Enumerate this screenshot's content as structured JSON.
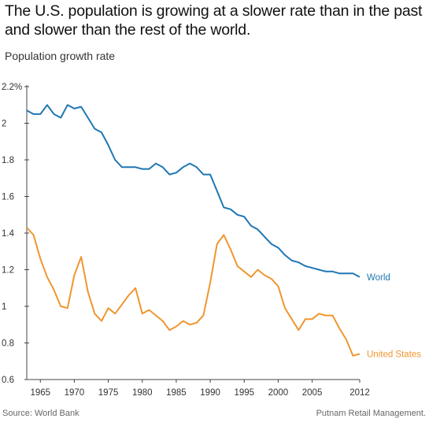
{
  "header": {
    "title": "The U.S. population is growing at a slower rate than in the past and slower than the rest of the world.",
    "subtitle": "Population growth rate"
  },
  "footer": {
    "source": "Source: World Bank",
    "credit": "Putnam Retail Management."
  },
  "chart_data": {
    "type": "line",
    "title": "",
    "xlabel": "",
    "ylabel": "",
    "xlim": [
      1963,
      2012
    ],
    "ylim": [
      0.6,
      2.2
    ],
    "grid": false,
    "x_ticks": [
      1965,
      1970,
      1975,
      1980,
      1985,
      1990,
      1995,
      2000,
      2005,
      2012
    ],
    "x_tick_labels": [
      "1965",
      "1970",
      "1975",
      "1980",
      "1985",
      "1990",
      "1995",
      "2000",
      "2005",
      "2012"
    ],
    "y_ticks": [
      0.6,
      0.8,
      1.0,
      1.2,
      1.4,
      1.6,
      1.8,
      2.0,
      2.2
    ],
    "y_tick_labels": [
      "0.6",
      "0.8",
      "1",
      "1.2",
      "1.4",
      "1.6",
      "1.8",
      "2",
      "2.2%"
    ],
    "x": [
      1963,
      1964,
      1965,
      1966,
      1967,
      1968,
      1969,
      1970,
      1971,
      1972,
      1973,
      1974,
      1975,
      1976,
      1977,
      1978,
      1979,
      1980,
      1981,
      1982,
      1983,
      1984,
      1985,
      1986,
      1987,
      1988,
      1989,
      1990,
      1991,
      1992,
      1993,
      1994,
      1995,
      1996,
      1997,
      1998,
      1999,
      2000,
      2001,
      2002,
      2003,
      2004,
      2005,
      2006,
      2007,
      2008,
      2009,
      2010,
      2011,
      2012
    ],
    "series": [
      {
        "name": "World",
        "color": "#1f77b4",
        "values": [
          2.07,
          2.05,
          2.05,
          2.1,
          2.05,
          2.03,
          2.1,
          2.08,
          2.09,
          2.03,
          1.97,
          1.95,
          1.88,
          1.8,
          1.76,
          1.76,
          1.76,
          1.75,
          1.75,
          1.78,
          1.76,
          1.72,
          1.73,
          1.76,
          1.78,
          1.76,
          1.72,
          1.72,
          1.63,
          1.54,
          1.53,
          1.5,
          1.49,
          1.44,
          1.42,
          1.38,
          1.34,
          1.32,
          1.28,
          1.25,
          1.24,
          1.22,
          1.21,
          1.2,
          1.19,
          1.19,
          1.18,
          1.18,
          1.18,
          1.16
        ]
      },
      {
        "name": "United States",
        "color": "#f0962f",
        "values": [
          1.43,
          1.39,
          1.26,
          1.16,
          1.09,
          1.0,
          0.99,
          1.17,
          1.27,
          1.08,
          0.96,
          0.92,
          0.99,
          0.96,
          1.01,
          1.06,
          1.1,
          0.96,
          0.98,
          0.95,
          0.92,
          0.87,
          0.89,
          0.92,
          0.9,
          0.91,
          0.95,
          1.13,
          1.34,
          1.39,
          1.31,
          1.22,
          1.19,
          1.16,
          1.2,
          1.17,
          1.15,
          1.11,
          0.99,
          0.93,
          0.87,
          0.93,
          0.93,
          0.96,
          0.95,
          0.95,
          0.88,
          0.82,
          0.73,
          0.74
        ]
      }
    ]
  }
}
